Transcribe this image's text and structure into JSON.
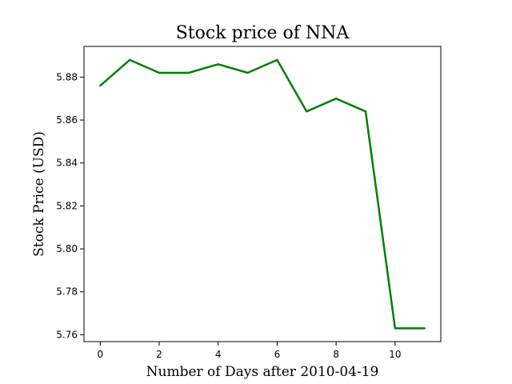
{
  "chart_data": {
    "type": "line",
    "title": "Stock price of NNA",
    "xlabel": "Number of Days after 2010-04-19",
    "ylabel": "Stock Price (USD)",
    "x": [
      0,
      1,
      2,
      3,
      4,
      5,
      6,
      7,
      8,
      9,
      10,
      11
    ],
    "series": [
      {
        "values": [
          5.876,
          5.888,
          5.882,
          5.882,
          5.886,
          5.882,
          5.888,
          5.864,
          5.87,
          5.864,
          5.763,
          5.763
        ],
        "color": "#008000"
      }
    ],
    "xlim": [
      -0.55,
      11.55
    ],
    "ylim": [
      5.7568,
      5.8943
    ],
    "xticks": [
      0,
      2,
      4,
      6,
      8,
      10
    ],
    "yticks": [
      5.76,
      5.78,
      5.8,
      5.82,
      5.84,
      5.86,
      5.88
    ],
    "ytick_labels": [
      "5.76",
      "5.78",
      "5.80",
      "5.82",
      "5.84",
      "5.86",
      "5.88"
    ],
    "grid": false,
    "legend": false
  }
}
